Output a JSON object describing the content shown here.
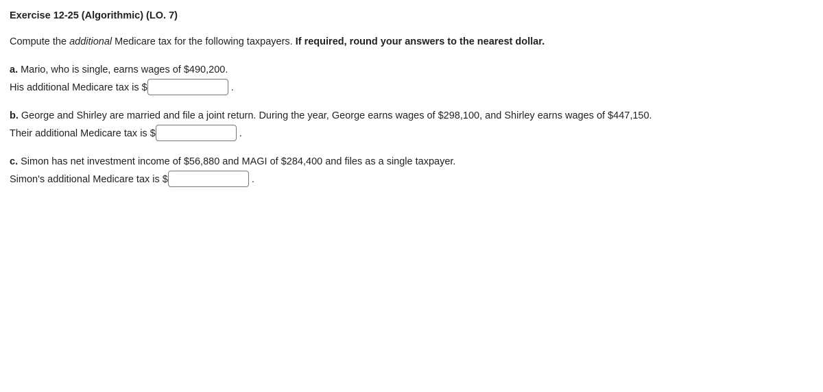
{
  "title": "Exercise 12-25 (Algorithmic) (LO. 7)",
  "prompt_pre": "Compute the ",
  "prompt_italic": "additional",
  "prompt_mid": " Medicare tax for the following taxpayers. ",
  "prompt_bold": "If required, round your answers to the nearest dollar.",
  "a": {
    "label": "a.",
    "text": "Mario, who is single, earns wages of $490,200.",
    "answer_pre": "His additional Medicare tax is $",
    "value": "",
    "period": "."
  },
  "b": {
    "label": "b.",
    "text": "George and Shirley are married and file a joint return. During the year, George earns wages of $298,100, and Shirley earns wages of $447,150.",
    "answer_pre": "Their additional Medicare tax is $",
    "value": "",
    "period": "."
  },
  "c": {
    "label": "c.",
    "text": "Simon has net investment income of $56,880 and MAGI of $284,400 and files as a single taxpayer.",
    "answer_pre": "Simon's additional Medicare tax is $",
    "value": "",
    "period": "."
  }
}
